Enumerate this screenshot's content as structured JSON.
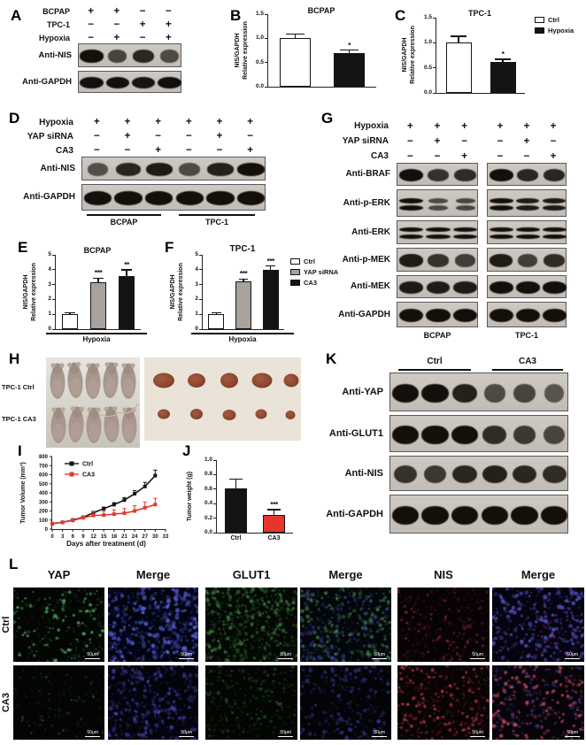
{
  "panels": {
    "A": {
      "label": "A",
      "conds": [
        {
          "label": "BCPAP",
          "signs": [
            "+",
            "+",
            "−",
            "−"
          ]
        },
        {
          "label": "TPC-1",
          "signs": [
            "−",
            "−",
            "+",
            "+"
          ]
        },
        {
          "label": "Hypoxia",
          "signs": [
            "−",
            "+",
            "−",
            "+"
          ]
        }
      ],
      "blots": [
        {
          "label": "Anti-NIS",
          "bands": [
            1.0,
            0.55,
            0.8,
            0.5
          ]
        },
        {
          "label": "Anti-GAPDH",
          "bands": [
            1.0,
            1.0,
            0.95,
            1.0
          ]
        }
      ]
    },
    "B": {
      "label": "B"
    },
    "C": {
      "label": "C"
    },
    "D": {
      "label": "D",
      "conds": [
        {
          "label": "Hypoxia",
          "signs": [
            "+",
            "+",
            "+",
            "+",
            "+",
            "+"
          ]
        },
        {
          "label": "YAP siRNA",
          "signs": [
            "−",
            "+",
            "−",
            "−",
            "+",
            "−"
          ]
        },
        {
          "label": "CA3",
          "signs": [
            "−",
            "−",
            "+",
            "−",
            "−",
            "+"
          ]
        }
      ],
      "blots": [
        {
          "label": "Anti-NIS",
          "bands": [
            0.45,
            0.8,
            0.9,
            0.5,
            0.85,
            1.0
          ]
        },
        {
          "label": "Anti-GAPDH",
          "bands": [
            1.0,
            1.0,
            1.0,
            1.0,
            1.0,
            1.0
          ]
        }
      ],
      "groups": [
        "BCPAP",
        "TPC-1"
      ]
    },
    "E": {
      "label": "E"
    },
    "F": {
      "label": "F"
    },
    "G": {
      "label": "G",
      "conds": [
        {
          "label": "Hypoxia",
          "signs": [
            "+",
            "+",
            "+",
            "+",
            "+",
            "+"
          ]
        },
        {
          "label": "YAP siRNA",
          "signs": [
            "−",
            "+",
            "−",
            "−",
            "+",
            "−"
          ]
        },
        {
          "label": "CA3",
          "signs": [
            "−",
            "−",
            "+",
            "−",
            "−",
            "+"
          ]
        }
      ],
      "blots": [
        {
          "label": "Anti-BRAF",
          "bands": [
            1.0,
            0.7,
            0.75,
            1.0,
            0.8,
            0.8
          ]
        },
        {
          "label": "Anti-p-ERK",
          "dbl": true,
          "bands": [
            1.0,
            0.5,
            0.55,
            1.0,
            0.9,
            0.9
          ]
        },
        {
          "label": "Anti-ERK",
          "dbl": true,
          "bands": [
            1.0,
            1.0,
            1.0,
            1.0,
            1.0,
            1.0
          ]
        },
        {
          "label": "Anti-p-MEK",
          "bands": [
            0.9,
            0.7,
            0.6,
            0.9,
            0.6,
            0.75
          ]
        },
        {
          "label": "Anti-MEK",
          "bands": [
            0.9,
            0.9,
            0.9,
            1.0,
            1.0,
            1.0
          ]
        },
        {
          "label": "Anti-GAPDH",
          "bands": [
            1.0,
            1.0,
            1.0,
            1.0,
            1.0,
            1.0
          ]
        }
      ],
      "groups": [
        "BCPAP",
        "TPC-1"
      ]
    },
    "H": {
      "label": "H",
      "rows": [
        "TPC-1 Ctrl",
        "TPC-1 CA3"
      ]
    },
    "I": {
      "label": "I"
    },
    "J": {
      "label": "J"
    },
    "K": {
      "label": "K",
      "groups": [
        "Ctrl",
        "CA3"
      ],
      "blots": [
        {
          "label": "Anti-YAP",
          "bands": [
            1.0,
            1.0,
            0.85,
            0.5,
            0.55,
            0.4
          ]
        },
        {
          "label": "Anti-GLUT1",
          "bands": [
            1.0,
            1.0,
            1.0,
            0.75,
            0.65,
            0.55
          ]
        },
        {
          "label": "Anti-NIS",
          "bands": [
            0.7,
            0.65,
            0.8,
            0.85,
            0.8,
            0.75
          ]
        },
        {
          "label": "Anti-GAPDH",
          "bands": [
            1.0,
            1.0,
            1.0,
            1.0,
            1.0,
            1.0
          ]
        }
      ]
    },
    "L": {
      "label": "L",
      "cols": [
        "YAP",
        "Merge",
        "GLUT1",
        "Merge",
        "NIS",
        "Merge"
      ],
      "rows": [
        "Ctrl",
        "CA3"
      ],
      "scalebar": "50μm",
      "cells": [
        [
          {
            "bg": "#030503",
            "layers": [
              {
                "c": "#5dbb6a",
                "n": 120,
                "r": 1.5,
                "a": 0.85
              },
              {
                "c": "#2f7a3c",
                "n": 300,
                "r": 1.0,
                "a": 0.45
              }
            ]
          },
          {
            "bg": "#030310",
            "layers": [
              {
                "c": "#5b67e0",
                "n": 230,
                "r": 2.0,
                "a": 0.85
              },
              {
                "c": "#2b35a8",
                "n": 200,
                "r": 1.6,
                "a": 0.6
              },
              {
                "c": "#4fae5e",
                "n": 40,
                "r": 1.2,
                "a": 0.5
              }
            ]
          },
          {
            "bg": "#040704",
            "layers": [
              {
                "c": "#58b158",
                "n": 260,
                "r": 1.8,
                "a": 0.55
              },
              {
                "c": "#2f7a3c",
                "n": 300,
                "r": 1.2,
                "a": 0.45
              }
            ]
          },
          {
            "bg": "#04060a",
            "layers": [
              {
                "c": "#4fa95c",
                "n": 220,
                "r": 1.8,
                "a": 0.6
              },
              {
                "c": "#3d49b8",
                "n": 180,
                "r": 1.8,
                "a": 0.55
              }
            ]
          },
          {
            "bg": "#070304",
            "layers": [
              {
                "c": "#b03646",
                "n": 150,
                "r": 1.3,
                "a": 0.6
              },
              {
                "c": "#702030",
                "n": 220,
                "r": 1.0,
                "a": 0.5
              }
            ]
          },
          {
            "bg": "#040310",
            "layers": [
              {
                "c": "#5b5bd0",
                "n": 230,
                "r": 1.9,
                "a": 0.8
              },
              {
                "c": "#8a4a9a",
                "n": 80,
                "r": 1.4,
                "a": 0.5
              },
              {
                "c": "#b03646",
                "n": 60,
                "r": 1.1,
                "a": 0.5
              }
            ]
          }
        ],
        [
          {
            "bg": "#030403",
            "layers": [
              {
                "c": "#3e8a4a",
                "n": 70,
                "r": 1.2,
                "a": 0.5
              },
              {
                "c": "#255c30",
                "n": 160,
                "r": 1.0,
                "a": 0.4
              }
            ]
          },
          {
            "bg": "#030309",
            "layers": [
              {
                "c": "#4a4ec0",
                "n": 220,
                "r": 1.9,
                "a": 0.7
              },
              {
                "c": "#262a80",
                "n": 180,
                "r": 1.5,
                "a": 0.5
              }
            ]
          },
          {
            "bg": "#030503",
            "layers": [
              {
                "c": "#3e8a4a",
                "n": 160,
                "r": 1.4,
                "a": 0.45
              },
              {
                "c": "#255c30",
                "n": 240,
                "r": 1.1,
                "a": 0.4
              }
            ]
          },
          {
            "bg": "#030308",
            "layers": [
              {
                "c": "#3c42a0",
                "n": 200,
                "r": 1.8,
                "a": 0.6
              },
              {
                "c": "#2f6b3a",
                "n": 70,
                "r": 1.3,
                "a": 0.4
              }
            ]
          },
          {
            "bg": "#080304",
            "layers": [
              {
                "c": "#d84856",
                "n": 170,
                "r": 1.5,
                "a": 0.8
              },
              {
                "c": "#8a2838",
                "n": 220,
                "r": 1.1,
                "a": 0.55
              }
            ]
          },
          {
            "bg": "#060309",
            "layers": [
              {
                "c": "#d8506a",
                "n": 180,
                "r": 1.7,
                "a": 0.8
              },
              {
                "c": "#4a4ab0",
                "n": 140,
                "r": 1.6,
                "a": 0.55
              }
            ]
          }
        ]
      ]
    }
  },
  "chart_data": [
    {
      "panel": "B",
      "type": "bar",
      "title": "BCPAP",
      "ylabel": "NIS/GAPDH\nRelative expression",
      "ylim": [
        0,
        1.5
      ],
      "yticks": [
        {
          "v": 0,
          "t": "0.0"
        },
        {
          "v": 0.5,
          "t": "0.5"
        },
        {
          "v": 1.0,
          "t": "1.0"
        },
        {
          "v": 1.5,
          "t": "1.5"
        }
      ],
      "categories": [
        "Ctrl",
        "Hypoxia"
      ],
      "values": [
        1.0,
        0.7
      ],
      "errors": [
        0.08,
        0.05
      ],
      "sig": [
        "",
        "*"
      ],
      "colors": [
        "#ffffff",
        "#141414"
      ]
    },
    {
      "panel": "C",
      "type": "bar",
      "title": "TPC-1",
      "ylabel": "NIS/GAPDH\nRelative expression",
      "ylim": [
        0,
        1.5
      ],
      "yticks": [
        {
          "v": 0,
          "t": "0.0"
        },
        {
          "v": 0.5,
          "t": "0.5"
        },
        {
          "v": 1.0,
          "t": "1.0"
        },
        {
          "v": 1.5,
          "t": "1.5"
        }
      ],
      "categories": [
        "Ctrl",
        "Hypoxia"
      ],
      "values": [
        1.0,
        0.62
      ],
      "errors": [
        0.12,
        0.04
      ],
      "sig": [
        "",
        "*"
      ],
      "colors": [
        "#ffffff",
        "#141414"
      ],
      "legend": [
        {
          "label": "Ctrl",
          "color": "#ffffff"
        },
        {
          "label": "Hypoxia",
          "color": "#141414"
        }
      ]
    },
    {
      "panel": "E",
      "type": "bar",
      "title": "BCPAP",
      "ylabel": "NIS/GAPDH\nRelative expression",
      "xlabel": "Hypoxia",
      "ylim": [
        0,
        5
      ],
      "yticks": [
        {
          "v": 0,
          "t": "0"
        },
        {
          "v": 1,
          "t": "1"
        },
        {
          "v": 2,
          "t": "2"
        },
        {
          "v": 3,
          "t": "3"
        },
        {
          "v": 4,
          "t": "4"
        },
        {
          "v": 5,
          "t": "5"
        }
      ],
      "categories": [
        "Ctrl",
        "YAP siRNA",
        "CA3"
      ],
      "values": [
        1.0,
        3.15,
        3.6
      ],
      "errors": [
        0.05,
        0.25,
        0.35
      ],
      "sig": [
        "",
        "***",
        "**"
      ],
      "colors": [
        "#ffffff",
        "#a9a29c",
        "#141414"
      ]
    },
    {
      "panel": "F",
      "type": "bar",
      "title": "TPC-1",
      "ylabel": "NIS/GAPDH\nRelative expression",
      "xlabel": "Hypoxia",
      "ylim": [
        0,
        5
      ],
      "yticks": [
        {
          "v": 0,
          "t": "0"
        },
        {
          "v": 1,
          "t": "1"
        },
        {
          "v": 2,
          "t": "2"
        },
        {
          "v": 3,
          "t": "3"
        },
        {
          "v": 4,
          "t": "4"
        },
        {
          "v": 5,
          "t": "5"
        }
      ],
      "categories": [
        "Ctrl",
        "YAP siRNA",
        "CA3"
      ],
      "values": [
        1.0,
        3.2,
        4.0
      ],
      "errors": [
        0.05,
        0.15,
        0.2
      ],
      "sig": [
        "",
        "***",
        "***"
      ],
      "colors": [
        "#ffffff",
        "#a9a29c",
        "#141414"
      ],
      "legend": [
        {
          "label": "Ctrl",
          "color": "#ffffff"
        },
        {
          "label": "YAP siRNA",
          "color": "#a9a29c"
        },
        {
          "label": "CA3",
          "color": "#141414"
        }
      ]
    },
    {
      "panel": "I",
      "type": "line",
      "ylabel": "Tumor Volume (mm³)",
      "xlabel": "Days after treatment (d)",
      "xlim": [
        0,
        33
      ],
      "ylim": [
        0,
        800
      ],
      "xticks": [
        0,
        3,
        6,
        9,
        12,
        15,
        18,
        21,
        24,
        27,
        30,
        33
      ],
      "yticks": [
        0,
        100,
        200,
        300,
        400,
        500,
        600,
        700,
        800
      ],
      "x": [
        0,
        3,
        6,
        9,
        12,
        15,
        18,
        21,
        24,
        27,
        30
      ],
      "series": [
        {
          "name": "Ctrl",
          "color": "#141414",
          "values": [
            60,
            75,
            100,
            130,
            180,
            225,
            270,
            320,
            390,
            470,
            590
          ],
          "errors": [
            8,
            8,
            10,
            12,
            15,
            18,
            22,
            28,
            35,
            45,
            60
          ]
        },
        {
          "name": "CA3",
          "color": "#e23a30",
          "values": [
            60,
            75,
            95,
            125,
            150,
            155,
            165,
            175,
            200,
            235,
            270
          ],
          "errors": [
            6,
            8,
            10,
            14,
            40,
            42,
            48,
            52,
            58,
            65,
            70
          ]
        }
      ]
    },
    {
      "panel": "J",
      "type": "bar",
      "ylabel": "Tumor weight (g)",
      "ylim": [
        0,
        1.0
      ],
      "yticks": [
        {
          "v": 0,
          "t": "0.0"
        },
        {
          "v": 0.2,
          "t": "0.2"
        },
        {
          "v": 0.4,
          "t": "0.4"
        },
        {
          "v": 0.6,
          "t": "0.6"
        },
        {
          "v": 0.8,
          "t": "0.8"
        },
        {
          "v": 1.0,
          "t": "1.0"
        }
      ],
      "categories": [
        "Ctrl",
        "CA3"
      ],
      "xticklabels": [
        "Ctrl",
        "CA3"
      ],
      "values": [
        0.61,
        0.25
      ],
      "errors": [
        0.12,
        0.06
      ],
      "sig": [
        "",
        "***"
      ],
      "colors": [
        "#141414",
        "#e8352c"
      ]
    }
  ]
}
